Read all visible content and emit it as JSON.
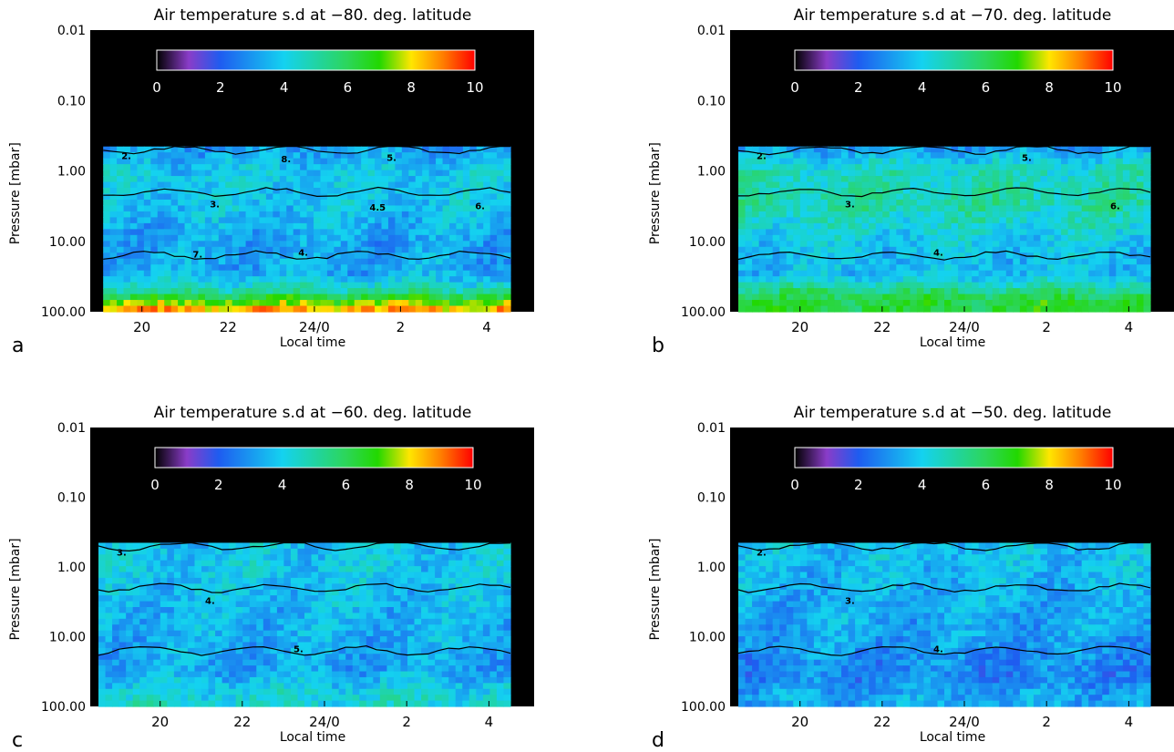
{
  "figure": {
    "ylabel": "Pressure [mbar]",
    "xlabel": "Local time"
  },
  "colorbar": {
    "ticks": [
      0,
      2,
      4,
      6,
      8,
      10
    ],
    "range": [
      0,
      10
    ],
    "stops": [
      {
        "v": 0,
        "color": "#000000"
      },
      {
        "v": 1,
        "color": "#8a3cc8"
      },
      {
        "v": 2,
        "color": "#1e5cf0"
      },
      {
        "v": 4,
        "color": "#14d2f0"
      },
      {
        "v": 6,
        "color": "#2cd65a"
      },
      {
        "v": 7,
        "color": "#22d800"
      },
      {
        "v": 8,
        "color": "#ffe600"
      },
      {
        "v": 9,
        "color": "#ff7d00"
      },
      {
        "v": 10,
        "color": "#ff0000"
      }
    ]
  },
  "chart_data": [
    {
      "type": "heatmap",
      "panel_label": "a",
      "title": "Air temperature s.d at −80. deg. latitude",
      "latitude": -80,
      "xlabel": "Local time",
      "ylabel": "Pressure [mbar]",
      "x_ticks": [
        "20",
        "22",
        "24/0",
        "2",
        "4"
      ],
      "y_ticks": [
        "0.01",
        "0.10",
        "1.00",
        "10.00",
        "100.00"
      ],
      "y_scale": "log",
      "x_range_hours": [
        18.8,
        29.1
      ],
      "data_x_range_hours": [
        19.1,
        29.1
      ],
      "data_pressure_range": [
        0.45,
        100
      ],
      "contour_labels": [
        "2.",
        "3.",
        "4.",
        "5.",
        "6.",
        "7.",
        "8.",
        "4.5"
      ],
      "profile": [
        {
          "p": 0.5,
          "sd": 3.2
        },
        {
          "p": 1.0,
          "sd": 3.9
        },
        {
          "p": 3.0,
          "sd": 3.8
        },
        {
          "p": 10.0,
          "sd": 3.2
        },
        {
          "p": 30.0,
          "sd": 3.4
        },
        {
          "p": 50.0,
          "sd": 5.0
        },
        {
          "p": 70.0,
          "sd": 7.0
        },
        {
          "p": 100.0,
          "sd": 9.0
        }
      ]
    },
    {
      "type": "heatmap",
      "panel_label": "b",
      "title": "Air temperature s.d at −70. deg. latitude",
      "latitude": -70,
      "xlabel": "Local time",
      "ylabel": "Pressure [mbar]",
      "x_ticks": [
        "20",
        "22",
        "24/0",
        "2",
        "4"
      ],
      "y_ticks": [
        "0.01",
        "0.10",
        "1.00",
        "10.00",
        "100.00"
      ],
      "y_scale": "log",
      "x_range_hours": [
        18.3,
        29.1
      ],
      "data_x_range_hours": [
        18.5,
        29.1
      ],
      "data_pressure_range": [
        0.45,
        100
      ],
      "contour_labels": [
        "2.",
        "3.",
        "4.",
        "5.",
        "6."
      ],
      "profile": [
        {
          "p": 0.5,
          "sd": 3.3
        },
        {
          "p": 1.0,
          "sd": 4.6
        },
        {
          "p": 3.0,
          "sd": 5.0
        },
        {
          "p": 10.0,
          "sd": 3.9
        },
        {
          "p": 30.0,
          "sd": 3.6
        },
        {
          "p": 50.0,
          "sd": 5.4
        },
        {
          "p": 70.0,
          "sd": 6.5
        },
        {
          "p": 100.0,
          "sd": 6.3
        }
      ]
    },
    {
      "type": "heatmap",
      "panel_label": "c",
      "title": "Air temperature s.d at −60. deg. latitude",
      "latitude": -60,
      "xlabel": "Local time",
      "ylabel": "Pressure [mbar]",
      "x_ticks": [
        "20",
        "22",
        "24/0",
        "2",
        "4"
      ],
      "y_ticks": [
        "0.01",
        "0.10",
        "1.00",
        "10.00",
        "100.00"
      ],
      "y_scale": "log",
      "x_range_hours": [
        18.3,
        29.1
      ],
      "data_x_range_hours": [
        18.5,
        29.1
      ],
      "data_pressure_range": [
        0.45,
        100
      ],
      "contour_labels": [
        "3.",
        "4.",
        "5."
      ],
      "profile": [
        {
          "p": 0.5,
          "sd": 3.8
        },
        {
          "p": 1.0,
          "sd": 3.9
        },
        {
          "p": 3.0,
          "sd": 3.6
        },
        {
          "p": 10.0,
          "sd": 3.4
        },
        {
          "p": 30.0,
          "sd": 3.2
        },
        {
          "p": 50.0,
          "sd": 3.9
        },
        {
          "p": 70.0,
          "sd": 4.3
        },
        {
          "p": 100.0,
          "sd": 4.4
        }
      ]
    },
    {
      "type": "heatmap",
      "panel_label": "d",
      "title": "Air temperature s.d at −50. deg. latitude",
      "latitude": -50,
      "xlabel": "Local time",
      "ylabel": "Pressure [mbar]",
      "x_ticks": [
        "20",
        "22",
        "24/0",
        "2",
        "4"
      ],
      "y_ticks": [
        "0.01",
        "0.10",
        "1.00",
        "10.00",
        "100.00"
      ],
      "y_scale": "log",
      "x_range_hours": [
        18.3,
        29.1
      ],
      "data_x_range_hours": [
        18.5,
        29.1
      ],
      "data_pressure_range": [
        0.45,
        100
      ],
      "contour_labels": [
        "2.",
        "3.",
        "4."
      ],
      "profile": [
        {
          "p": 0.5,
          "sd": 3.8
        },
        {
          "p": 1.0,
          "sd": 3.6
        },
        {
          "p": 3.0,
          "sd": 3.4
        },
        {
          "p": 10.0,
          "sd": 3.2
        },
        {
          "p": 30.0,
          "sd": 2.7
        },
        {
          "p": 50.0,
          "sd": 2.9
        },
        {
          "p": 70.0,
          "sd": 3.3
        },
        {
          "p": 100.0,
          "sd": 3.3
        }
      ]
    }
  ]
}
